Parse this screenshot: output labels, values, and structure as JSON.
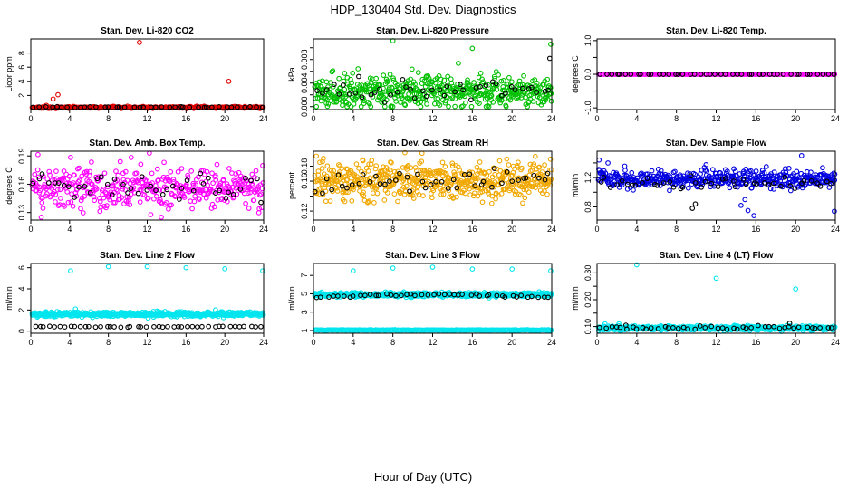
{
  "figure": {
    "title": "HDP_130404  Std. Dev. Diagnostics",
    "xlabel": "Hour of Day (UTC)"
  },
  "chart_data": [
    {
      "type": "scatter",
      "title": "Stan. Dev. Li-820 CO2",
      "ylabel": "Licor ppm",
      "xlim": [
        0,
        24
      ],
      "ylim": [
        0,
        10
      ],
      "yticks": [
        2,
        4,
        6,
        8
      ],
      "ytick_labels": [
        "2",
        "4",
        "6",
        "8"
      ],
      "xticks": [
        0,
        4,
        8,
        12,
        16,
        20,
        24
      ],
      "series": [
        {
          "name": "primary",
          "color": "#e00000",
          "n": 300,
          "base": 0.3,
          "noise": 0.12,
          "outliers": [
            [
              1.6,
              0.6
            ],
            [
              2.3,
              1.5
            ],
            [
              2.8,
              2.1
            ],
            [
              11.2,
              9.5
            ],
            [
              20.4,
              4.0
            ]
          ]
        },
        {
          "name": "summary",
          "color": "#000000",
          "n": 40,
          "base": 0.35,
          "noise": 0.06
        }
      ]
    },
    {
      "type": "scatter",
      "title": "Stan. Dev. Li-820 Pressure",
      "ylabel": "kPa",
      "xlim": [
        0,
        24
      ],
      "ylim": [
        -0.0005,
        0.0115
      ],
      "yticks": [
        0.0,
        0.002,
        0.004,
        0.006,
        0.008,
        0.01
      ],
      "ytick_labels": [
        "0.000",
        "",
        "0.004",
        "",
        "0.008",
        ""
      ],
      "xticks": [
        0,
        4,
        8,
        12,
        16,
        20,
        24
      ],
      "series": [
        {
          "name": "primary",
          "color": "#00c000",
          "n": 520,
          "base": 0.0025,
          "noise": 0.0024,
          "min": 0.0,
          "outliers": [
            [
              8.0,
              0.0112
            ],
            [
              16.0,
              0.0099
            ],
            [
              23.9,
              0.0106
            ]
          ]
        },
        {
          "name": "summary",
          "color": "#000000",
          "n": 45,
          "base": 0.0025,
          "noise": 0.0018,
          "min": 0.0,
          "outliers": [
            [
              23.8,
              0.0082
            ]
          ]
        }
      ]
    },
    {
      "type": "scatter",
      "title": "Stan. Dev. Li-820 Temp.",
      "ylabel": "degrees C",
      "xlim": [
        0,
        24
      ],
      "ylim": [
        -1.05,
        1.05
      ],
      "yticks": [
        -1.0,
        -0.5,
        0.0,
        0.5,
        1.0
      ],
      "ytick_labels": [
        "-1.0",
        "",
        "0.0",
        "",
        "1.0"
      ],
      "xticks": [
        0,
        4,
        8,
        12,
        16,
        20,
        24
      ],
      "series": [
        {
          "name": "primary",
          "color": "#ff00ff",
          "n": 200,
          "base": 0.0,
          "noise": 0.0
        },
        {
          "name": "summary",
          "color": "#000000",
          "n": 45,
          "base": 0.0,
          "noise": 0.0
        }
      ]
    },
    {
      "type": "scatter",
      "title": "Stan. Dev. Amb. Box Temp.",
      "ylabel": "degrees C",
      "xlim": [
        0,
        24
      ],
      "ylim": [
        0.122,
        0.195
      ],
      "yticks": [
        0.13,
        0.16,
        0.19
      ],
      "ytick_labels": [
        "0.13",
        "0.16",
        "0.19"
      ],
      "xticks": [
        0,
        4,
        8,
        12,
        16,
        20,
        24
      ],
      "series": [
        {
          "name": "primary",
          "color": "#ff00ff",
          "n": 420,
          "base": 0.156,
          "noise": 0.022,
          "min": 0.125,
          "max": 0.193
        },
        {
          "name": "summary",
          "color": "#000000",
          "n": 45,
          "base": 0.155,
          "noise": 0.014
        }
      ]
    },
    {
      "type": "scatter",
      "title": "Stan. Dev. Gas Stream RH",
      "ylabel": "percent",
      "xlim": [
        0,
        24
      ],
      "ylim": [
        0.108,
        0.2
      ],
      "yticks": [
        0.12,
        0.14,
        0.16,
        0.18
      ],
      "ytick_labels": [
        "0.12",
        "",
        "0.16",
        "0.18"
      ],
      "xticks": [
        0,
        4,
        8,
        12,
        16,
        20,
        24
      ],
      "series": [
        {
          "name": "primary",
          "color": "#f0a800",
          "n": 560,
          "base": 0.16,
          "noise": 0.022,
          "min": 0.11,
          "max": 0.198
        },
        {
          "name": "summary",
          "color": "#000000",
          "n": 45,
          "base": 0.16,
          "noise": 0.012
        }
      ]
    },
    {
      "type": "scatter",
      "title": "Stan. Dev. Sample Flow",
      "ylabel": "ml/min",
      "xlim": [
        0,
        24
      ],
      "ylim": [
        0.62,
        1.56
      ],
      "yticks": [
        0.8,
        1.0,
        1.2,
        1.4
      ],
      "ytick_labels": [
        "0.8",
        "",
        "1.2",
        ""
      ],
      "xticks": [
        0,
        4,
        8,
        12,
        16,
        20,
        24
      ],
      "series": [
        {
          "name": "primary",
          "color": "#0000e0",
          "n": 460,
          "base": 1.18,
          "noise": 0.11,
          "outliers": [
            [
              14.5,
              0.82
            ],
            [
              15.2,
              0.75
            ],
            [
              15.8,
              0.68
            ],
            [
              14.9,
              0.9
            ],
            [
              20.6,
              1.5
            ],
            [
              23.9,
              0.74
            ],
            [
              0.2,
              1.44
            ],
            [
              1.1,
              1.4
            ]
          ]
        },
        {
          "name": "summary",
          "color": "#000000",
          "n": 45,
          "base": 1.13,
          "noise": 0.07,
          "outliers": [
            [
              9.6,
              0.78
            ],
            [
              9.9,
              0.84
            ]
          ]
        }
      ]
    },
    {
      "type": "scatter",
      "title": "Stan. Dev. Line 2 Flow",
      "ylabel": "ml/min",
      "xlim": [
        0,
        24
      ],
      "ylim": [
        -0.2,
        6.4
      ],
      "yticks": [
        0,
        2,
        4,
        6
      ],
      "ytick_labels": [
        "0",
        "2",
        "4",
        "6"
      ],
      "xticks": [
        0,
        4,
        8,
        12,
        16,
        20,
        24
      ],
      "series": [
        {
          "name": "primary",
          "color": "#00e5ee",
          "n": 560,
          "base": 1.6,
          "noise": 0.2,
          "outliers": [
            [
              4.1,
              5.7
            ],
            [
              8.0,
              6.1
            ],
            [
              12.0,
              6.1
            ],
            [
              16.0,
              6.0
            ],
            [
              20.0,
              5.9
            ],
            [
              23.9,
              5.7
            ],
            [
              4.6,
              2.1
            ]
          ]
        },
        {
          "name": "summary",
          "color": "#000000",
          "n": 45,
          "base": 0.42,
          "noise": 0.04
        }
      ]
    },
    {
      "type": "scatter",
      "title": "Stan. Dev. Line 3 Flow",
      "ylabel": "ml/min",
      "xlim": [
        0,
        24
      ],
      "ylim": [
        0.7,
        8.3
      ],
      "yticks": [
        1,
        3,
        5,
        7
      ],
      "ytick_labels": [
        "1",
        "3",
        "5",
        "7"
      ],
      "xticks": [
        0,
        4,
        8,
        12,
        16,
        20,
        24
      ],
      "series": [
        {
          "name": "primary",
          "color": "#00e5ee",
          "n": 540,
          "base": 4.9,
          "noise": 0.2,
          "outliers": [
            [
              4.0,
              7.5
            ],
            [
              8.0,
              7.8
            ],
            [
              12.0,
              7.9
            ],
            [
              16.0,
              7.7
            ],
            [
              20.0,
              7.7
            ],
            [
              23.9,
              7.5
            ]
          ]
        },
        {
          "name": "tertiary",
          "color": "#00e5ee",
          "n": 260,
          "base": 1.05,
          "noise": 0.04
        },
        {
          "name": "summary",
          "color": "#000000",
          "n": 45,
          "base": 4.6,
          "noise": 0.12,
          "trend": 0.3
        }
      ]
    },
    {
      "type": "scatter",
      "title": "Stan. Dev. Line 4 (LT) Flow",
      "ylabel": "ml/min",
      "xlim": [
        0,
        24
      ],
      "ylim": [
        0.075,
        0.335
      ],
      "yticks": [
        0.1,
        0.15,
        0.2,
        0.25,
        0.3
      ],
      "ytick_labels": [
        "0.10",
        "",
        "0.20",
        "",
        "0.30"
      ],
      "xticks": [
        0,
        4,
        8,
        12,
        16,
        20,
        24
      ],
      "series": [
        {
          "name": "primary",
          "color": "#00e5ee",
          "n": 520,
          "base": 0.094,
          "noise": 0.007,
          "outliers": [
            [
              4.0,
              0.33
            ],
            [
              12.0,
              0.28
            ],
            [
              20.0,
              0.24
            ],
            [
              0.8,
              0.11
            ],
            [
              2.2,
              0.11
            ]
          ]
        },
        {
          "name": "summary",
          "color": "#000000",
          "n": 45,
          "base": 0.096,
          "noise": 0.006,
          "outliers": [
            [
              19.4,
              0.112
            ],
            [
              2.9,
              0.105
            ]
          ]
        }
      ]
    }
  ]
}
